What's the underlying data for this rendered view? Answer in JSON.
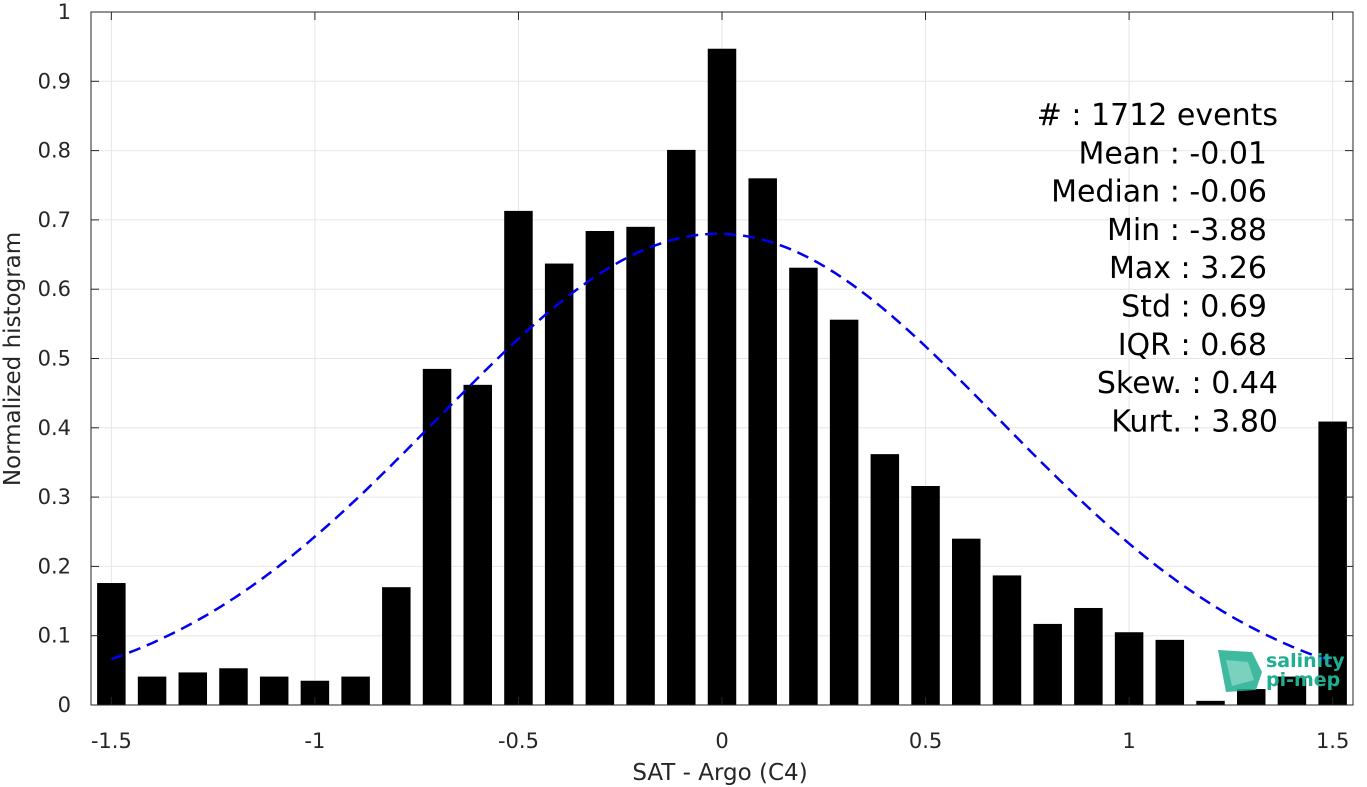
{
  "chart_data": {
    "type": "bar",
    "title": "",
    "xlabel": "SAT - Argo (C4)",
    "ylabel": "Normalized histogram",
    "xlim": [
      -1.55,
      1.55
    ],
    "ylim": [
      0,
      1
    ],
    "xticks": [
      -1.5,
      -1,
      -0.5,
      0,
      0.5,
      1,
      1.5
    ],
    "xtick_labels": [
      "-1.5",
      "-1",
      "-0.5",
      "0",
      "0.5",
      "1",
      "1.5"
    ],
    "yticks": [
      0,
      0.1,
      0.2,
      0.3,
      0.4,
      0.5,
      0.6,
      0.7,
      0.8,
      0.9,
      1
    ],
    "ytick_labels": [
      "0",
      "0.1",
      "0.2",
      "0.3",
      "0.4",
      "0.5",
      "0.6",
      "0.7",
      "0.8",
      "0.9",
      "1"
    ],
    "grid": true,
    "bar_color": "#000000",
    "bin_centers": [
      -1.5,
      -1.4,
      -1.3,
      -1.2,
      -1.1,
      -1.0,
      -0.9,
      -0.8,
      -0.7,
      -0.6,
      -0.5,
      -0.4,
      -0.3,
      -0.2,
      -0.1,
      0.0,
      0.1,
      0.2,
      0.3,
      0.4,
      0.5,
      0.6,
      0.7,
      0.8,
      0.9,
      1.0,
      1.1,
      1.2,
      1.3,
      1.4,
      1.5
    ],
    "values": [
      0.176,
      0.041,
      0.047,
      0.053,
      0.041,
      0.035,
      0.041,
      0.17,
      0.485,
      0.462,
      0.713,
      0.637,
      0.684,
      0.69,
      0.801,
      0.947,
      0.76,
      0.631,
      0.556,
      0.362,
      0.316,
      0.24,
      0.187,
      0.117,
      0.14,
      0.105,
      0.094,
      0.006,
      0.023,
      0.041,
      0.409
    ],
    "fit_curve": {
      "style": "dashed",
      "color": "#0000ee",
      "mean": -0.01,
      "std": 0.69,
      "peak": 0.68
    },
    "stats": [
      "#  : 1712 events",
      "Mean : -0.01",
      "Median : -0.06",
      "Min : -3.88",
      "Max : 3.26",
      "Std : 0.69",
      "IQR : 0.68",
      "Skew. : 0.44",
      "Kurt. : 3.80"
    ]
  },
  "logo": {
    "line1": "salinity",
    "line2": "pi-mep",
    "color": "#1fae8f"
  }
}
